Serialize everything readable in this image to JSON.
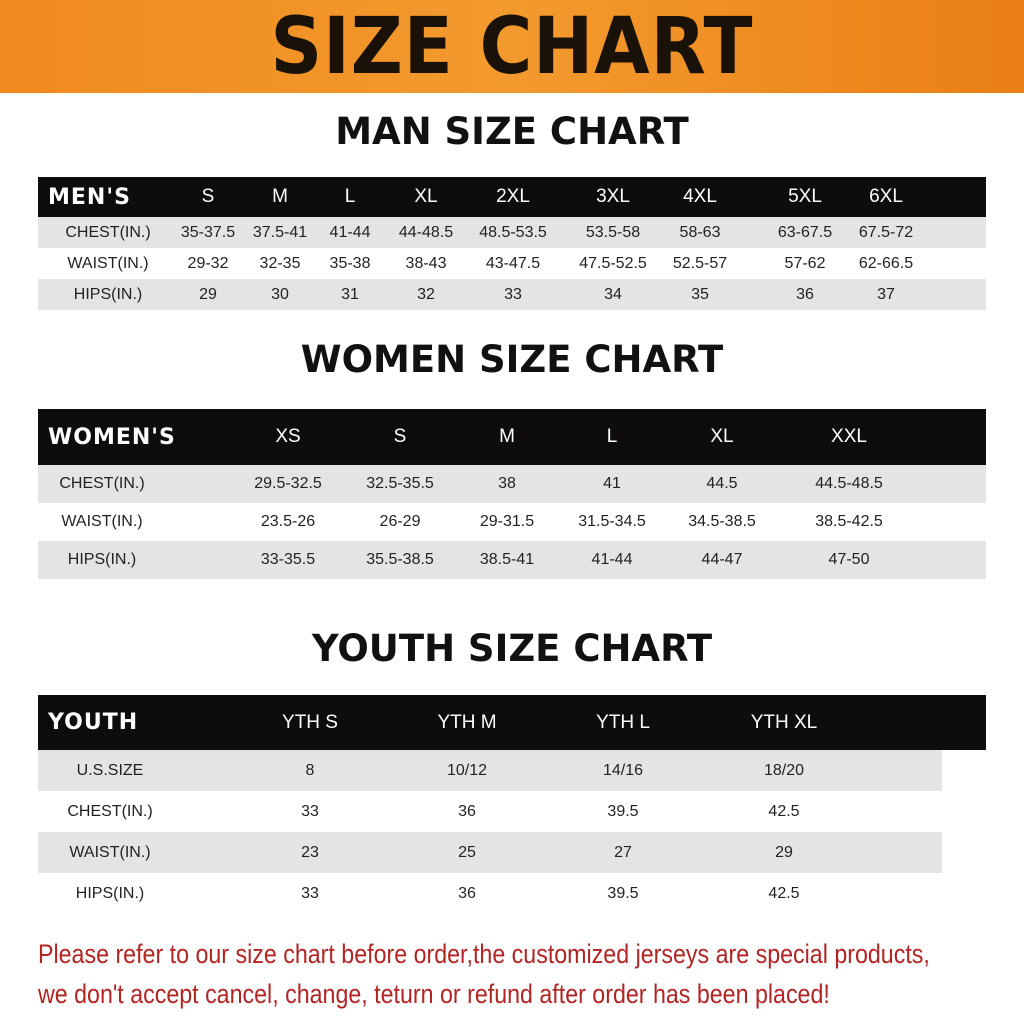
{
  "title": "SIZE CHART",
  "men": {
    "title": "MAN SIZE CHART",
    "header": [
      "MEN'S",
      "S",
      "M",
      "L",
      "XL",
      "2XL",
      "3XL",
      "4XL",
      "5XL",
      "6XL"
    ],
    "rows": [
      [
        "CHEST(IN.)",
        "35-37.5",
        "37.5-41",
        "41-44",
        "44-48.5",
        "48.5-53.5",
        "53.5-58",
        "58-63",
        "63-67.5",
        "67.5-72"
      ],
      [
        "WAIST(IN.)",
        "29-32",
        "32-35",
        "35-38",
        "38-43",
        "43-47.5",
        "47.5-52.5",
        "52.5-57",
        "57-62",
        "62-66.5"
      ],
      [
        "HIPS(IN.)",
        "29",
        "30",
        "31",
        "32",
        "33",
        "34",
        "35",
        "36",
        "37"
      ]
    ]
  },
  "women": {
    "title": "WOMEN SIZE CHART",
    "header": [
      "WOMEN'S",
      "XS",
      "S",
      "M",
      "L",
      "XL",
      "XXL"
    ],
    "rows": [
      [
        "CHEST(IN.)",
        "29.5-32.5",
        "32.5-35.5",
        "38",
        "41",
        "44.5",
        "44.5-48.5"
      ],
      [
        "WAIST(IN.)",
        "23.5-26",
        "26-29",
        "29-31.5",
        "31.5-34.5",
        "34.5-38.5",
        "38.5-42.5"
      ],
      [
        "HIPS(IN.)",
        "33-35.5",
        "35.5-38.5",
        "38.5-41",
        "41-44",
        "44-47",
        "47-50"
      ]
    ]
  },
  "youth": {
    "title": "YOUTH SIZE CHART",
    "header": [
      "YOUTH",
      "YTH S",
      "YTH M",
      "YTH L",
      "YTH XL"
    ],
    "rows": [
      [
        "U.S.SIZE",
        "8",
        "10/12",
        "14/16",
        "18/20"
      ],
      [
        "CHEST(IN.)",
        "33",
        "36",
        "39.5",
        "42.5"
      ],
      [
        "WAIST(IN.)",
        "23",
        "25",
        "27",
        "29"
      ],
      [
        "HIPS(IN.)",
        "33",
        "36",
        "39.5",
        "42.5"
      ]
    ]
  },
  "notice": {
    "line1": "Please refer to our size chart before order,the customized jerseys are special products,",
    "line2": "we don't accept cancel, change, teturn or refund after order has been placed!"
  },
  "colors": {
    "banner": "#ef8a1e",
    "header_bg": "#0e0c0c",
    "row_gray": "#e4e4e4",
    "notice": "#b32424"
  }
}
